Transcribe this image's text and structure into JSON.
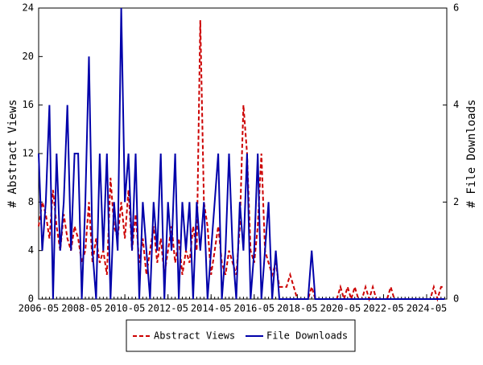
{
  "chart_data": {
    "type": "line",
    "x": [
      "2006-05",
      "2006-07",
      "2006-09",
      "2006-11",
      "2007-01",
      "2007-03",
      "2007-05",
      "2007-07",
      "2007-09",
      "2007-11",
      "2008-01",
      "2008-03",
      "2008-05",
      "2008-07",
      "2008-09",
      "2008-11",
      "2009-01",
      "2009-03",
      "2009-05",
      "2009-07",
      "2009-09",
      "2009-11",
      "2010-01",
      "2010-03",
      "2010-05",
      "2010-07",
      "2010-09",
      "2010-11",
      "2011-01",
      "2011-03",
      "2011-05",
      "2011-07",
      "2011-09",
      "2011-11",
      "2012-01",
      "2012-03",
      "2012-05",
      "2012-07",
      "2012-09",
      "2012-11",
      "2013-01",
      "2013-03",
      "2013-05",
      "2013-07",
      "2013-09",
      "2013-11",
      "2014-01",
      "2014-03",
      "2014-05",
      "2014-07",
      "2014-09",
      "2014-11",
      "2015-01",
      "2015-03",
      "2015-05",
      "2015-07",
      "2015-09",
      "2015-11",
      "2016-01",
      "2016-03",
      "2016-05",
      "2016-07",
      "2016-09",
      "2016-11",
      "2017-01",
      "2017-03",
      "2017-05",
      "2017-07",
      "2017-09",
      "2017-11",
      "2018-01",
      "2018-03",
      "2018-05",
      "2018-07",
      "2018-09",
      "2018-11",
      "2019-01",
      "2019-03",
      "2019-05",
      "2019-07",
      "2019-09",
      "2019-11",
      "2020-01",
      "2020-03",
      "2020-05",
      "2020-07",
      "2020-09",
      "2020-11",
      "2021-01",
      "2021-03",
      "2021-05",
      "2021-07",
      "2021-09",
      "2021-11",
      "2022-01",
      "2022-03",
      "2022-05",
      "2022-07",
      "2022-09",
      "2022-11",
      "2023-01",
      "2023-03",
      "2023-05",
      "2023-07",
      "2023-09",
      "2023-11",
      "2024-01",
      "2024-03",
      "2024-05",
      "2024-07",
      "2024-09",
      "2024-11",
      "2025-01",
      "2025-03"
    ],
    "xticks": [
      "2006-05",
      "2008-05",
      "2010-05",
      "2012-05",
      "2014-05",
      "2016-05",
      "2018-05",
      "2020-05",
      "2022-05",
      "2024-05"
    ],
    "ylabel": "# Abstract Views",
    "y2label": "# File Downloads",
    "ylim": [
      0,
      24
    ],
    "yticks": [
      0,
      4,
      8,
      12,
      16,
      20,
      24
    ],
    "y2lim": [
      0,
      6
    ],
    "y2ticks": [
      0,
      2,
      4,
      6
    ],
    "legend": "bottom",
    "series": [
      {
        "name": "Abstract Views",
        "color": "#cc0000",
        "dashed": true,
        "values": [
          6,
          8,
          7,
          5,
          9,
          6,
          4,
          7,
          5,
          4,
          6,
          5,
          3,
          4,
          8,
          3,
          5,
          3,
          4,
          2,
          10,
          6,
          5,
          8,
          5,
          9,
          4,
          7,
          3,
          5,
          2,
          4,
          6,
          3,
          5,
          2,
          4,
          6,
          3,
          5,
          2,
          4,
          3,
          6,
          4,
          23,
          8,
          6,
          2,
          4,
          6,
          3,
          2,
          4,
          3,
          2,
          6,
          16,
          12,
          4,
          3,
          6,
          12,
          4,
          3,
          2,
          3,
          1,
          1,
          1,
          2,
          1,
          0,
          0,
          0,
          0,
          1,
          0,
          0,
          0,
          0,
          0,
          0,
          0,
          1,
          0,
          1,
          0,
          1,
          0,
          0,
          1,
          0,
          1,
          0,
          0,
          0,
          0,
          1,
          0,
          0,
          0,
          0,
          0,
          0,
          0,
          0,
          0,
          0,
          0,
          1,
          0,
          1,
          1
        ]
      },
      {
        "name": "File Downloads",
        "color": "#0000aa",
        "axis": "y2",
        "values": [
          3,
          1,
          2,
          4,
          0,
          3,
          1,
          2,
          4,
          1,
          3,
          3,
          0,
          2,
          5,
          1,
          0,
          3,
          1,
          3,
          0,
          2,
          1,
          6,
          2,
          3,
          1,
          3,
          0,
          2,
          1,
          0,
          2,
          1,
          3,
          0,
          2,
          1,
          3,
          0,
          2,
          1,
          2,
          0,
          2,
          1,
          2,
          0,
          1,
          2,
          3,
          0,
          1,
          3,
          1,
          0,
          2,
          1,
          3,
          0,
          1,
          3,
          0,
          1,
          2,
          0,
          1,
          0,
          0,
          0,
          0,
          0,
          0,
          0,
          0,
          0,
          1,
          0,
          0,
          0,
          0,
          0,
          0,
          0,
          0,
          0,
          0,
          0,
          0,
          0,
          0,
          0,
          0,
          0,
          0,
          0,
          0,
          0,
          0,
          0,
          0,
          0,
          0,
          0,
          0,
          0,
          0,
          0,
          0,
          0,
          0,
          0,
          0,
          0
        ]
      }
    ]
  }
}
